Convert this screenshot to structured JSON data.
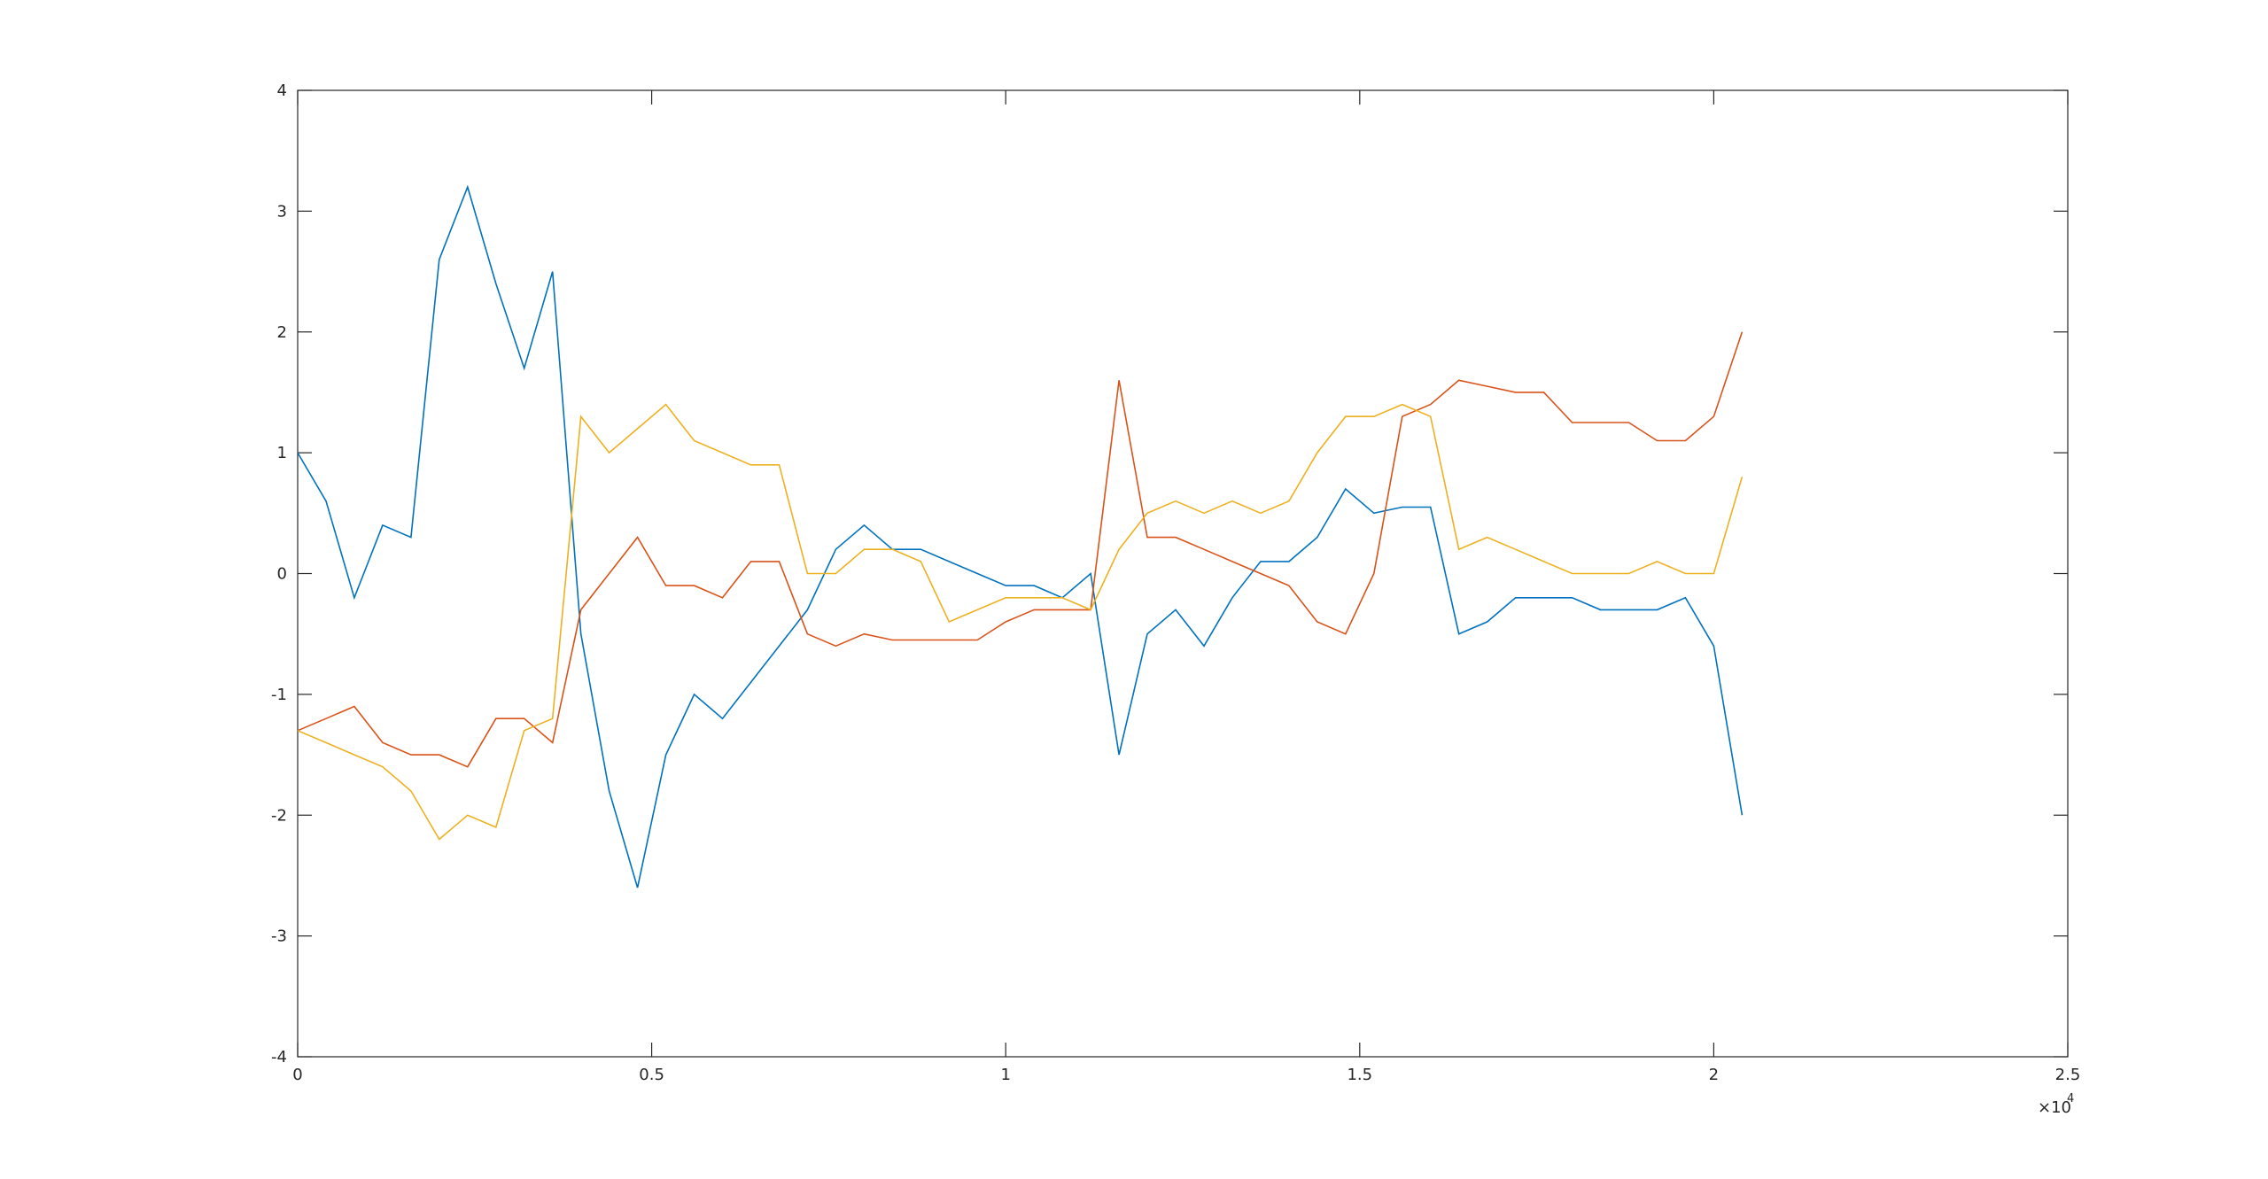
{
  "chart_data": {
    "type": "line",
    "x": [
      0,
      400,
      800,
      1200,
      1600,
      2000,
      2400,
      2800,
      3200,
      3600,
      4000,
      4400,
      4800,
      5200,
      5600,
      6000,
      6400,
      6800,
      7200,
      7600,
      8000,
      8400,
      8800,
      9200,
      9600,
      10000,
      10400,
      10800,
      11200,
      11600,
      12000,
      12400,
      12800,
      13200,
      13600,
      14000,
      14400,
      14800,
      15200,
      15600,
      16000,
      16400,
      16800,
      17200,
      17600,
      18000,
      18400,
      18800,
      19200,
      19600,
      20000,
      20400
    ],
    "series": [
      {
        "color": "#0072BD",
        "values": [
          1.0,
          0.6,
          -0.2,
          0.4,
          0.3,
          2.6,
          3.2,
          2.4,
          1.7,
          2.5,
          -0.5,
          -1.8,
          -2.6,
          -1.5,
          -1.0,
          -1.2,
          -0.9,
          -0.6,
          -0.3,
          0.2,
          0.4,
          0.2,
          0.2,
          0.1,
          0.0,
          -0.1,
          -0.1,
          -0.2,
          0.0,
          -1.5,
          -0.5,
          -0.3,
          -0.6,
          -0.2,
          0.1,
          0.1,
          0.3,
          0.7,
          0.5,
          0.55,
          0.55,
          -0.5,
          -0.4,
          -0.2,
          -0.2,
          -0.2,
          -0.3,
          -0.3,
          -0.3,
          -0.2,
          -0.6,
          -2.0
        ]
      },
      {
        "color": "#D95319",
        "values": [
          -1.3,
          -1.2,
          -1.1,
          -1.4,
          -1.5,
          -1.5,
          -1.6,
          -1.2,
          -1.2,
          -1.4,
          -0.3,
          0.0,
          0.3,
          -0.1,
          -0.1,
          -0.2,
          0.1,
          0.1,
          -0.5,
          -0.6,
          -0.5,
          -0.55,
          -0.55,
          -0.55,
          -0.55,
          -0.4,
          -0.3,
          -0.3,
          -0.3,
          1.6,
          0.3,
          0.3,
          0.2,
          0.1,
          0.0,
          -0.1,
          -0.4,
          -0.5,
          0.0,
          1.3,
          1.4,
          1.6,
          1.55,
          1.5,
          1.5,
          1.25,
          1.25,
          1.25,
          1.1,
          1.1,
          1.3,
          2.0
        ]
      },
      {
        "color": "#EDB120",
        "values": [
          -1.3,
          -1.4,
          -1.5,
          -1.6,
          -1.8,
          -2.2,
          -2.0,
          -2.1,
          -1.3,
          -1.2,
          1.3,
          1.0,
          1.2,
          1.4,
          1.1,
          1.0,
          0.9,
          0.9,
          0.0,
          0.0,
          0.2,
          0.2,
          0.1,
          -0.4,
          -0.3,
          -0.2,
          -0.2,
          -0.2,
          -0.3,
          0.2,
          0.5,
          0.6,
          0.5,
          0.6,
          0.5,
          0.6,
          1.0,
          1.3,
          1.3,
          1.4,
          1.3,
          0.2,
          0.3,
          0.2,
          0.1,
          0.0,
          0.0,
          0.0,
          0.1,
          0.0,
          0.0,
          0.8
        ]
      }
    ],
    "xlim": [
      0,
      25000
    ],
    "xticks": [
      0,
      {
        "value": 5000,
        "label": "0.5"
      },
      {
        "value": 10000,
        "label": "1"
      },
      {
        "value": 15000,
        "label": "1.5"
      },
      {
        "value": 20000,
        "label": "2"
      },
      {
        "value": 25000,
        "label": "2.5"
      }
    ],
    "x_multiplier": "×10",
    "x_exponent": "4",
    "ylim": [
      -4,
      4
    ],
    "yticks": [
      -4,
      -3,
      -2,
      -1,
      0,
      1,
      2,
      3,
      4
    ],
    "grid": false
  }
}
